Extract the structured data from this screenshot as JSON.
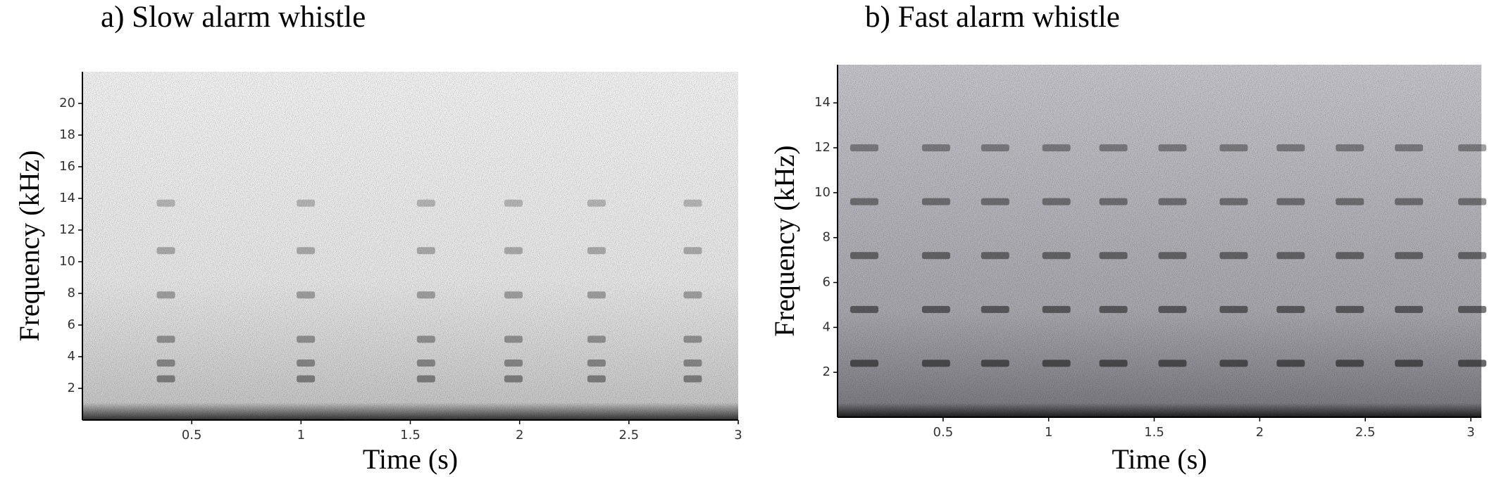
{
  "chart_data": [
    {
      "type": "spectrogram",
      "title": "a) Slow alarm whistle",
      "x_label": "Time (s)",
      "y_label": "Frequency (kHz)",
      "xlim": [
        0,
        3
      ],
      "xticks": [
        0.5,
        1,
        1.5,
        2,
        2.5,
        3
      ],
      "ylim": [
        0,
        22
      ],
      "yticks": [
        2,
        4,
        6,
        8,
        10,
        12,
        14,
        16,
        18,
        20
      ],
      "calls": [
        0.34,
        0.98,
        1.53,
        1.93,
        2.31,
        2.75
      ],
      "harmonics": [
        2.6,
        3.6,
        5.1,
        7.9,
        10.7,
        13.7
      ],
      "color": "#3a3a3a"
    },
    {
      "type": "spectrogram",
      "title": "b) Fast alarm whistle",
      "x_label": "Time (s)",
      "y_label": "Frequency (kHz)",
      "xlim": [
        0,
        3.05
      ],
      "xticks": [
        0.5,
        1,
        1.5,
        2,
        2.5,
        3
      ],
      "ylim": [
        0,
        15.7
      ],
      "yticks": [
        2,
        4,
        6,
        8,
        10,
        12,
        14
      ],
      "calls": [
        0.06,
        0.4,
        0.68,
        0.97,
        1.24,
        1.52,
        1.81,
        2.08,
        2.36,
        2.64,
        2.94
      ],
      "harmonics": [
        2.4,
        4.8,
        7.2,
        9.6,
        12
      ],
      "color": "#2a2a2a"
    }
  ]
}
